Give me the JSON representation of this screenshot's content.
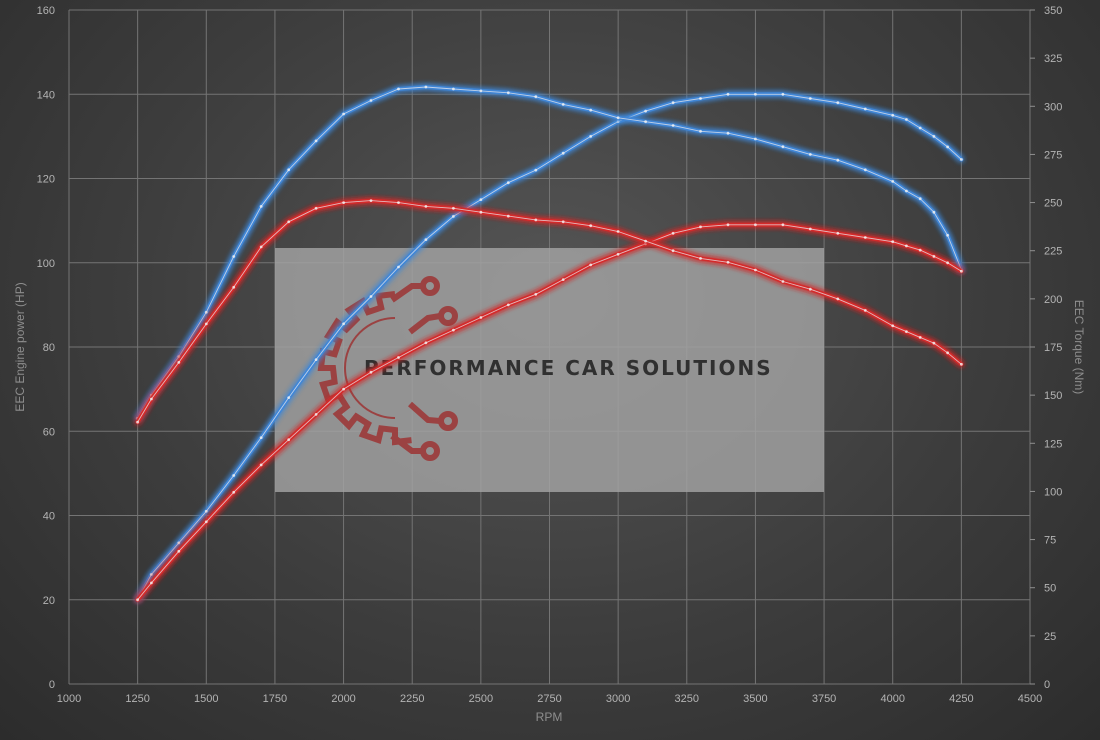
{
  "chart_data": {
    "type": "line",
    "xlabel": "RPM",
    "ylabel_left": "EEC Engine power (HP)",
    "ylabel_right": "EEC Torque (Nm)",
    "xlim": [
      1000,
      4500
    ],
    "x_ticks": [
      1000,
      1250,
      1500,
      1750,
      2000,
      2250,
      2500,
      2750,
      3000,
      3250,
      3500,
      3750,
      4000,
      4250,
      4500
    ],
    "ylim_left": [
      0,
      160
    ],
    "y_ticks_left": [
      0,
      20,
      40,
      60,
      80,
      100,
      120,
      140,
      160
    ],
    "ylim_right": [
      0,
      350
    ],
    "y_ticks_right": [
      0,
      25,
      50,
      75,
      100,
      125,
      150,
      175,
      200,
      225,
      250,
      275,
      300,
      325,
      350
    ],
    "grid": true,
    "colors": {
      "tuned": "#3f86d6",
      "stock": "#d42a2a"
    },
    "series": [
      {
        "key": "power_tuned",
        "axis": "left",
        "color_key": "tuned",
        "x": [
          1250,
          1300,
          1400,
          1500,
          1600,
          1700,
          1800,
          1900,
          2000,
          2100,
          2200,
          2300,
          2400,
          2500,
          2600,
          2700,
          2800,
          2900,
          3000,
          3100,
          3200,
          3300,
          3400,
          3500,
          3600,
          3700,
          3800,
          3900,
          4000,
          4050,
          4100,
          4150,
          4200,
          4250
        ],
        "y": [
          20,
          26,
          33.5,
          41,
          49.5,
          58.5,
          68,
          77,
          85.5,
          92,
          99,
          105.5,
          111,
          115,
          119,
          122,
          126,
          130,
          133.5,
          136,
          138,
          139,
          140,
          140,
          140,
          139,
          138,
          136.5,
          135,
          134,
          132,
          130,
          127.5,
          124.5
        ]
      },
      {
        "key": "torque_tuned",
        "axis": "right",
        "color_key": "tuned",
        "x": [
          1250,
          1300,
          1400,
          1500,
          1600,
          1700,
          1800,
          1900,
          2000,
          2100,
          2200,
          2300,
          2400,
          2500,
          2600,
          2700,
          2800,
          2900,
          3000,
          3100,
          3200,
          3300,
          3400,
          3500,
          3600,
          3700,
          3800,
          3900,
          4000,
          4050,
          4100,
          4150,
          4200,
          4250
        ],
        "y": [
          138,
          150,
          170,
          193,
          222,
          248,
          267,
          282,
          296,
          303,
          309,
          310,
          309,
          308,
          307,
          305,
          301,
          298,
          294,
          292,
          290,
          287,
          286,
          283,
          279,
          275,
          272,
          267,
          261,
          256,
          252,
          245,
          233,
          215
        ]
      },
      {
        "key": "power_stock",
        "axis": "left",
        "color_key": "stock",
        "x": [
          1250,
          1300,
          1400,
          1500,
          1600,
          1700,
          1800,
          1900,
          2000,
          2100,
          2200,
          2300,
          2400,
          2500,
          2600,
          2700,
          2800,
          2900,
          3000,
          3100,
          3200,
          3300,
          3400,
          3500,
          3600,
          3700,
          3800,
          3900,
          4000,
          4050,
          4100,
          4150,
          4200,
          4250
        ],
        "y": [
          20,
          24,
          31.5,
          38.5,
          45.5,
          52,
          58,
          64,
          70,
          74,
          77.5,
          81,
          84,
          87,
          90,
          92.5,
          96,
          99.5,
          102,
          104.5,
          107,
          108.5,
          109,
          109,
          109,
          108,
          107,
          106,
          105,
          104,
          103,
          101.5,
          100,
          98
        ]
      },
      {
        "key": "torque_stock",
        "axis": "right",
        "color_key": "stock",
        "x": [
          1250,
          1300,
          1400,
          1500,
          1600,
          1700,
          1800,
          1900,
          2000,
          2100,
          2200,
          2300,
          2400,
          2500,
          2600,
          2700,
          2800,
          2900,
          3000,
          3100,
          3200,
          3300,
          3400,
          3500,
          3600,
          3700,
          3800,
          3900,
          4000,
          4050,
          4100,
          4150,
          4200,
          4250
        ],
        "y": [
          136,
          148,
          167,
          187,
          206,
          227,
          240,
          247,
          250,
          251,
          250,
          248,
          247,
          245,
          243,
          241,
          240,
          238,
          235,
          230,
          225,
          221,
          219,
          215,
          209,
          205,
          200,
          194,
          186,
          183,
          180,
          177,
          172,
          166
        ]
      }
    ]
  },
  "watermark": {
    "brand_text": "PERFORMANCE CAR SOLUTIONS",
    "logo_icon": "gear-circuit-icon",
    "logo_color": "#9c3a3a"
  }
}
